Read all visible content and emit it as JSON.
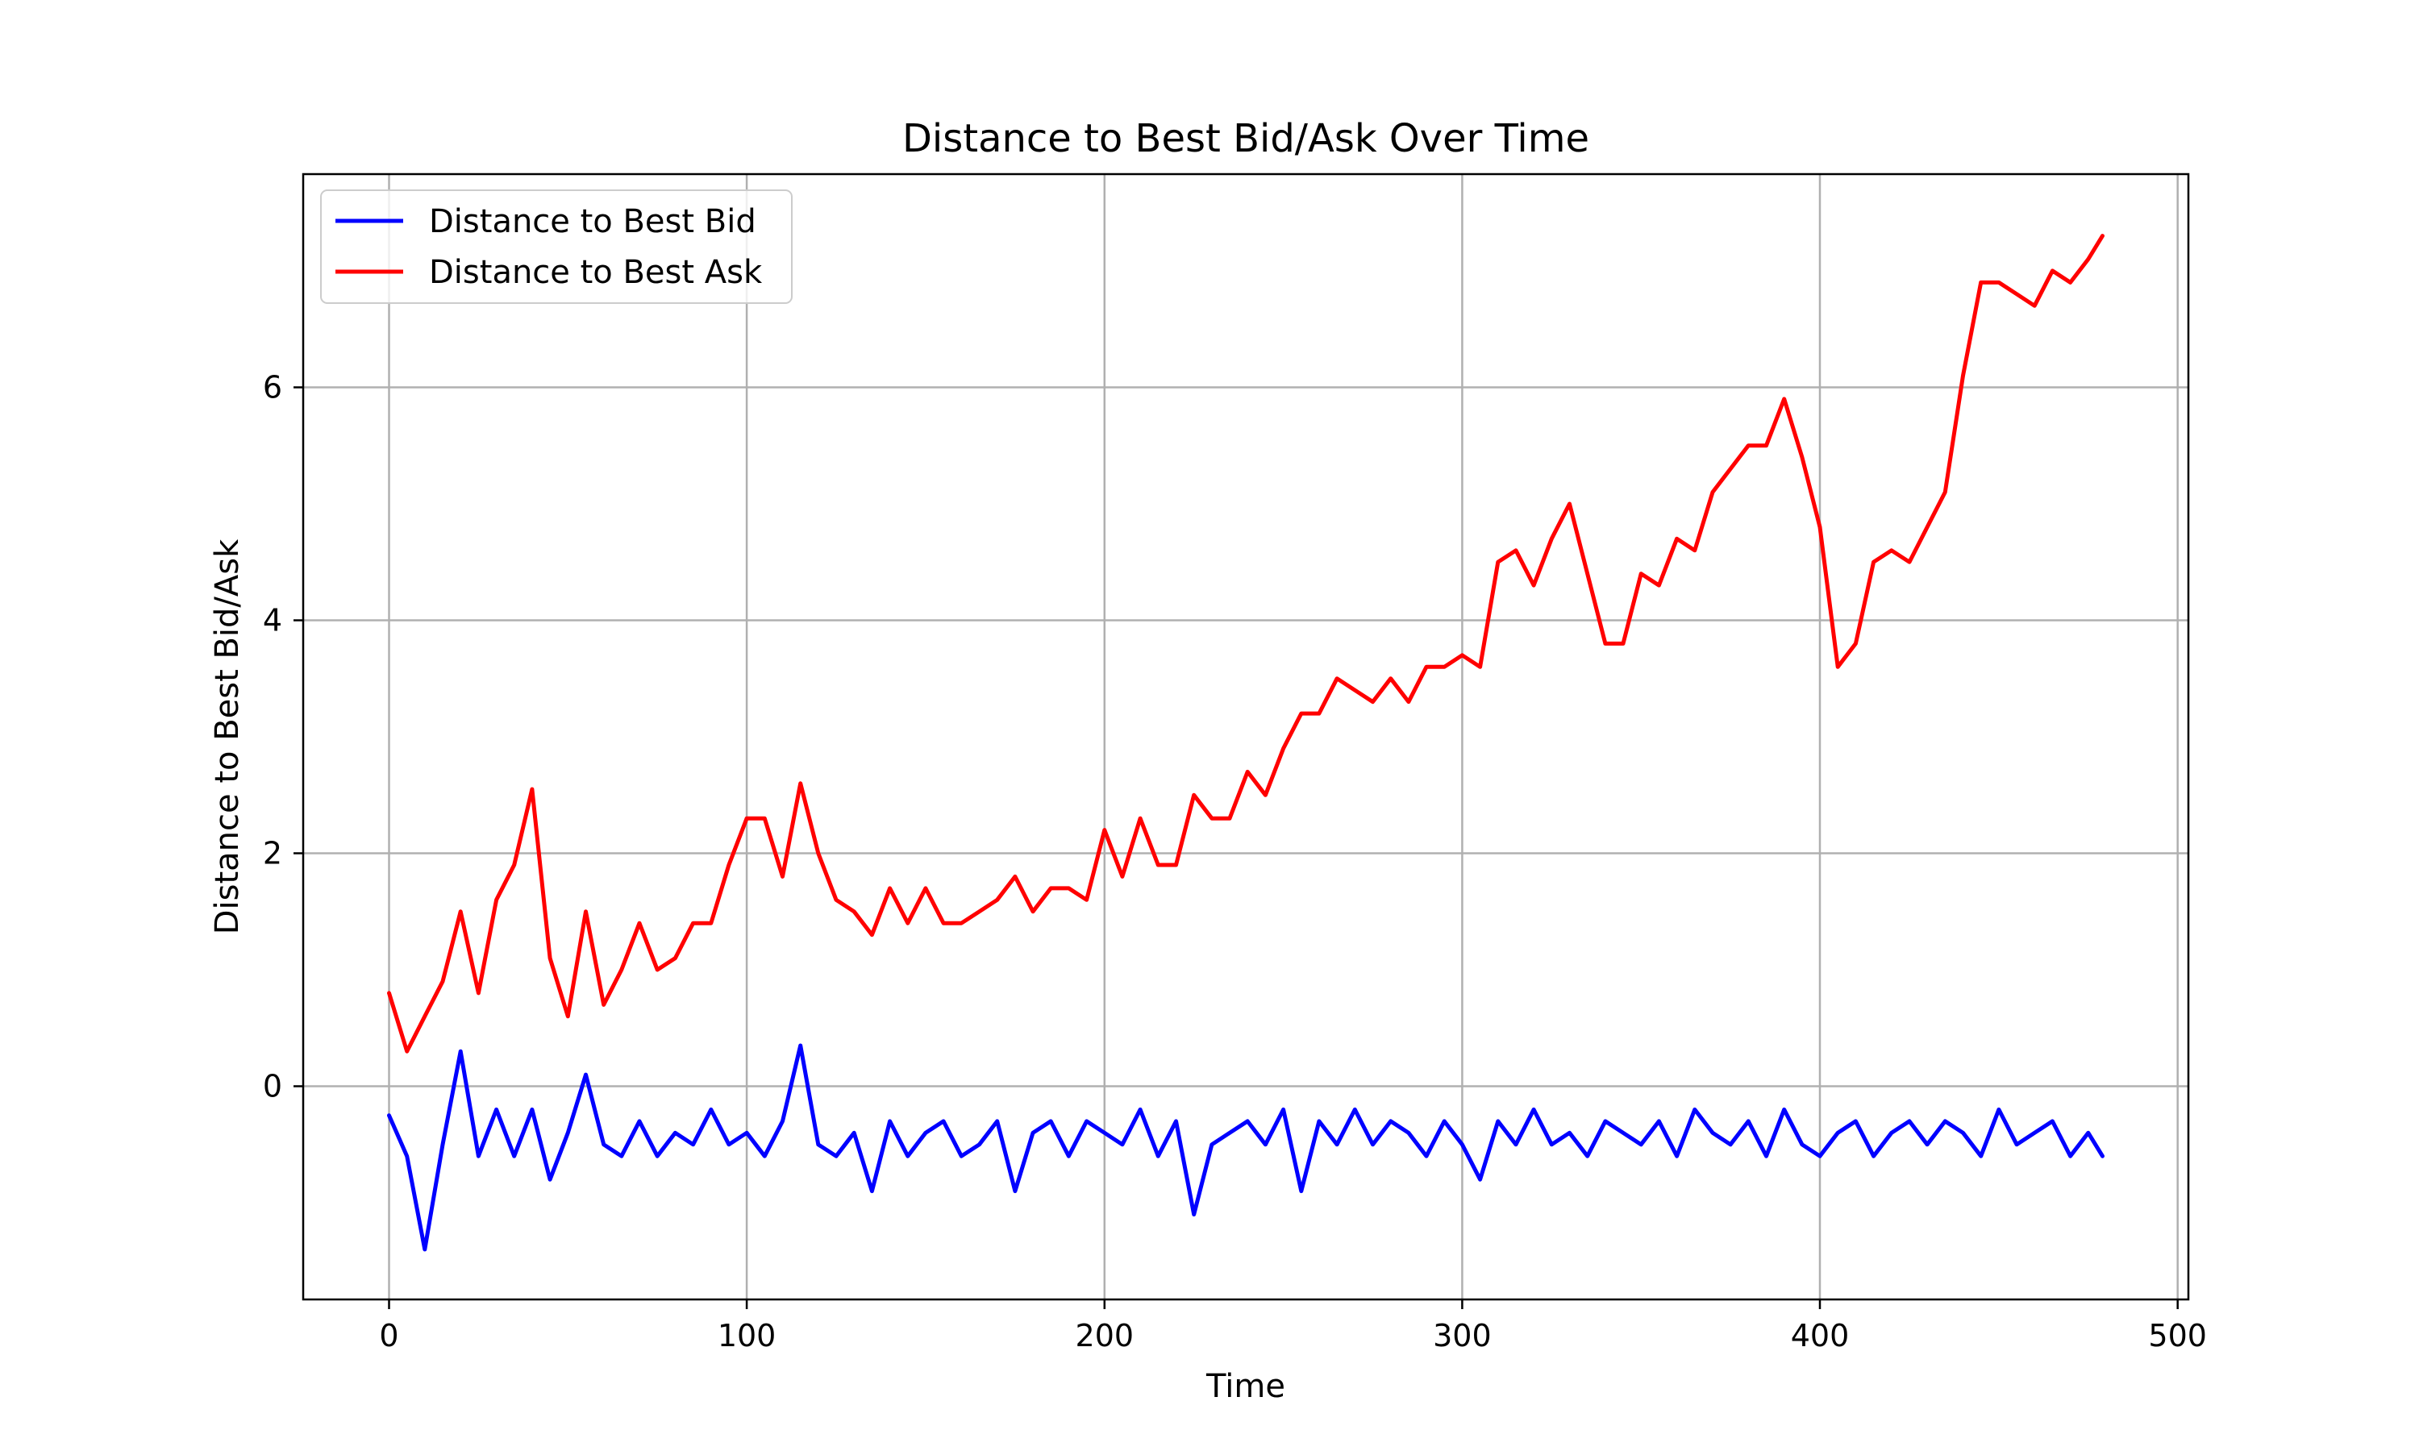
{
  "chart_data": {
    "type": "line",
    "title": "Distance to Best Bid/Ask Over Time",
    "xlabel": "Time",
    "ylabel": "Distance to Best Bid/Ask",
    "xlim": [
      -24,
      503
    ],
    "ylim": [
      -1.83,
      7.83
    ],
    "xticks": [
      0,
      100,
      200,
      300,
      400,
      500
    ],
    "yticks": [
      0,
      2,
      4,
      6
    ],
    "grid": true,
    "legend_position": "upper-left",
    "x": [
      0,
      5,
      10,
      15,
      20,
      25,
      30,
      35,
      40,
      45,
      50,
      55,
      60,
      65,
      70,
      75,
      80,
      85,
      90,
      95,
      100,
      105,
      110,
      115,
      120,
      125,
      130,
      135,
      140,
      145,
      150,
      155,
      160,
      165,
      170,
      175,
      180,
      185,
      190,
      195,
      200,
      205,
      210,
      215,
      220,
      225,
      230,
      235,
      240,
      245,
      250,
      255,
      260,
      265,
      270,
      275,
      280,
      285,
      290,
      295,
      300,
      305,
      310,
      315,
      320,
      325,
      330,
      335,
      340,
      345,
      350,
      355,
      360,
      365,
      370,
      375,
      380,
      385,
      390,
      395,
      400,
      405,
      410,
      415,
      420,
      425,
      430,
      435,
      440,
      445,
      450,
      455,
      460,
      465,
      470,
      475,
      479
    ],
    "series": [
      {
        "name": "Distance to Best Bid",
        "color": "#0000ff",
        "values": [
          -0.25,
          -0.6,
          -1.4,
          -0.5,
          0.3,
          -0.6,
          -0.2,
          -0.6,
          -0.2,
          -0.8,
          -0.4,
          0.1,
          -0.5,
          -0.6,
          -0.3,
          -0.6,
          -0.4,
          -0.5,
          -0.2,
          -0.5,
          -0.4,
          -0.6,
          -0.3,
          0.35,
          -0.5,
          -0.6,
          -0.4,
          -0.9,
          -0.3,
          -0.6,
          -0.4,
          -0.3,
          -0.6,
          -0.5,
          -0.3,
          -0.9,
          -0.4,
          -0.3,
          -0.6,
          -0.3,
          -0.4,
          -0.5,
          -0.2,
          -0.6,
          -0.3,
          -1.1,
          -0.5,
          -0.4,
          -0.3,
          -0.5,
          -0.2,
          -0.9,
          -0.3,
          -0.5,
          -0.2,
          -0.5,
          -0.3,
          -0.4,
          -0.6,
          -0.3,
          -0.5,
          -0.8,
          -0.3,
          -0.5,
          -0.2,
          -0.5,
          -0.4,
          -0.6,
          -0.3,
          -0.4,
          -0.5,
          -0.3,
          -0.6,
          -0.2,
          -0.4,
          -0.5,
          -0.3,
          -0.6,
          -0.2,
          -0.5,
          -0.6,
          -0.4,
          -0.3,
          -0.6,
          -0.4,
          -0.3,
          -0.5,
          -0.3,
          -0.4,
          -0.6,
          -0.2,
          -0.5,
          -0.4,
          -0.3,
          -0.6,
          -0.4,
          -0.6
        ]
      },
      {
        "name": "Distance to Best Ask",
        "color": "#ff0000",
        "values": [
          0.8,
          0.3,
          0.6,
          0.9,
          1.5,
          0.8,
          1.6,
          1.9,
          2.55,
          1.1,
          0.6,
          1.5,
          0.7,
          1.0,
          1.4,
          1.0,
          1.1,
          1.4,
          1.4,
          1.9,
          2.3,
          2.3,
          1.8,
          2.6,
          2.0,
          1.6,
          1.5,
          1.3,
          1.7,
          1.4,
          1.7,
          1.4,
          1.4,
          1.5,
          1.6,
          1.8,
          1.5,
          1.7,
          1.7,
          1.6,
          2.2,
          1.8,
          2.3,
          1.9,
          1.9,
          2.5,
          2.3,
          2.3,
          2.7,
          2.5,
          2.9,
          3.2,
          3.2,
          3.5,
          3.4,
          3.3,
          3.5,
          3.3,
          3.6,
          3.6,
          3.7,
          3.6,
          4.5,
          4.6,
          4.3,
          4.7,
          5.0,
          4.4,
          3.8,
          3.8,
          4.4,
          4.3,
          4.7,
          4.6,
          5.1,
          5.3,
          5.5,
          5.5,
          5.9,
          5.4,
          4.8,
          3.6,
          3.8,
          4.5,
          4.6,
          4.5,
          4.8,
          5.1,
          6.1,
          6.9,
          6.9,
          6.8,
          6.7,
          7.0,
          6.9,
          7.1,
          7.3
        ]
      }
    ]
  }
}
